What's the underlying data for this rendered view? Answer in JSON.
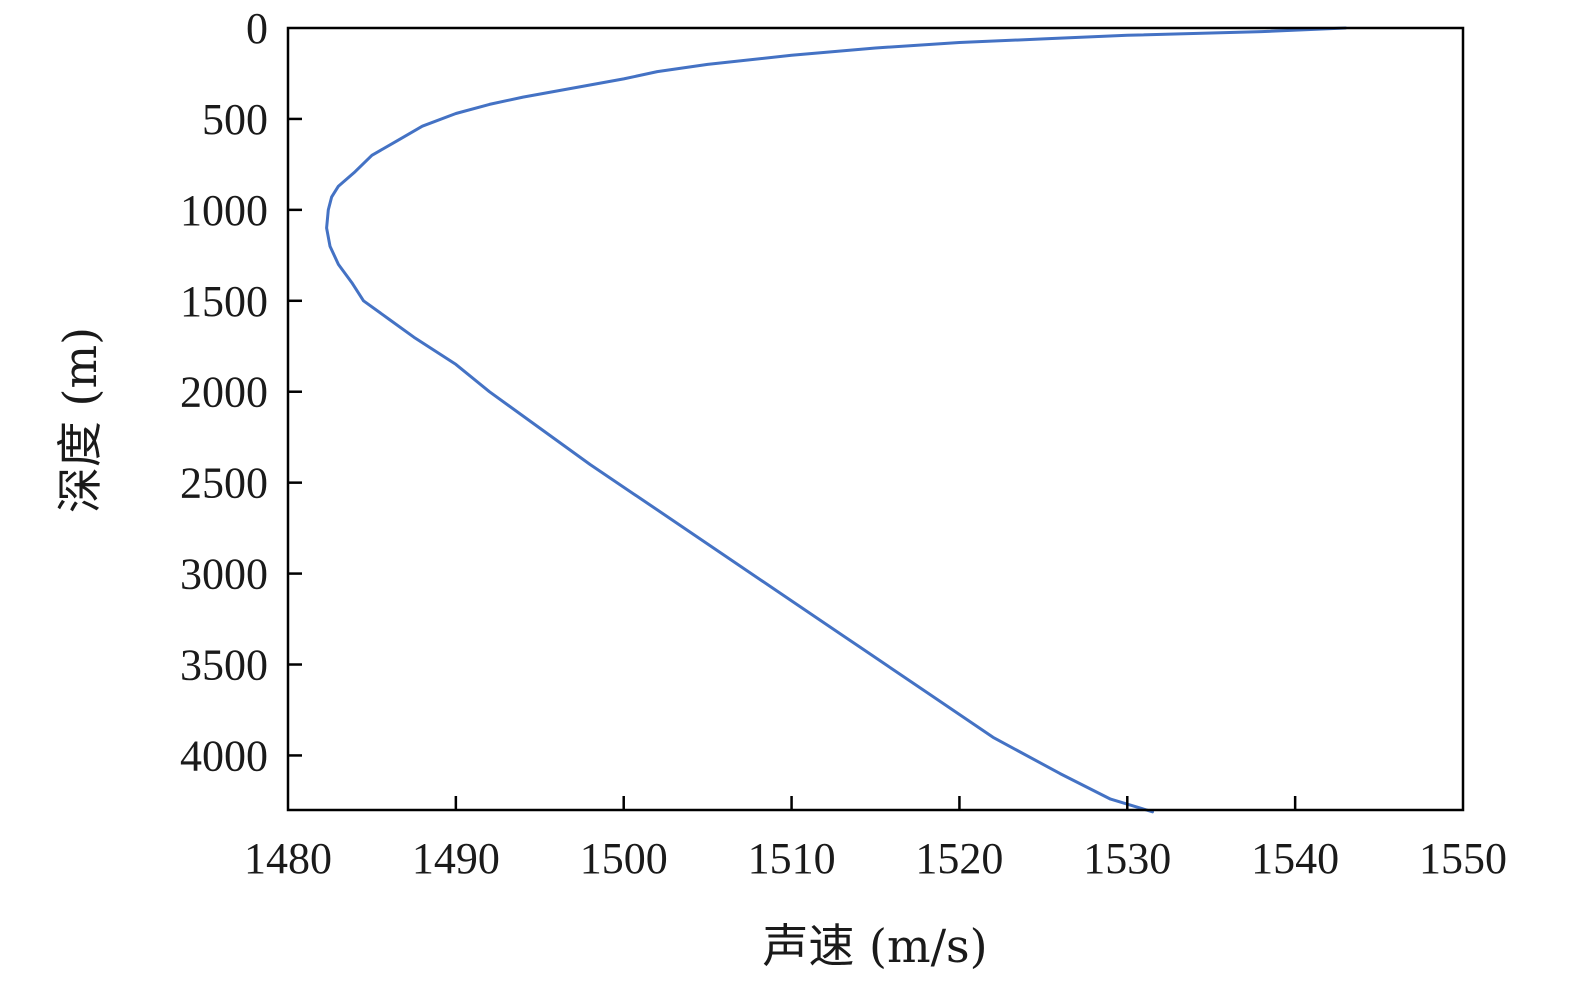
{
  "chart_data": {
    "type": "line",
    "xlabel": "声速 (m/s)",
    "ylabel": "深度 (m)",
    "xlim": [
      1480,
      1550
    ],
    "ylim": [
      0,
      4300
    ],
    "y_inverted": true,
    "grid": false,
    "legend": "none",
    "x_ticks": [
      "1480",
      "1490",
      "1500",
      "1510",
      "1520",
      "1530",
      "1540",
      "1550"
    ],
    "y_ticks": [
      "0",
      "500",
      "1000",
      "1500",
      "2000",
      "2500",
      "3000",
      "3500",
      "4000"
    ],
    "series": [
      {
        "color": "#4472c4",
        "x": [
          1543.0,
          1538.0,
          1530.0,
          1525.0,
          1520.0,
          1515.0,
          1510.0,
          1505.0,
          1502.0,
          1500.0,
          1497.0,
          1494.0,
          1492.0,
          1490.0,
          1488.0,
          1486.5,
          1485.0,
          1484.0,
          1483.0,
          1482.6,
          1482.4,
          1482.3,
          1482.5,
          1483.0,
          1483.8,
          1484.5,
          1486.0,
          1487.5,
          1490.0,
          1492.0,
          1495.0,
          1498.0,
          1502.0,
          1506.0,
          1510.0,
          1514.0,
          1518.0,
          1522.0,
          1526.0,
          1529.0,
          1531.5
        ],
        "y": [
          0,
          20,
          40,
          60,
          80,
          110,
          150,
          200,
          240,
          280,
          330,
          380,
          420,
          470,
          540,
          620,
          700,
          790,
          870,
          930,
          1000,
          1100,
          1200,
          1300,
          1400,
          1500,
          1600,
          1700,
          1850,
          2000,
          2200,
          2400,
          2650,
          2900,
          3150,
          3400,
          3650,
          3900,
          4100,
          4240,
          4310
        ]
      }
    ]
  }
}
